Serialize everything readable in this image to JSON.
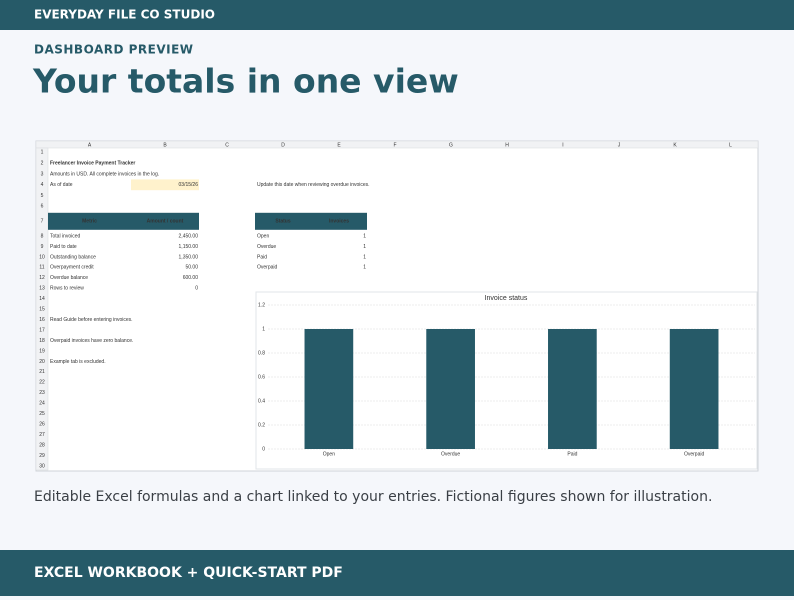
{
  "header": {
    "brand": "EVERYDAY FILE CO STUDIO"
  },
  "hero": {
    "kicker": "DASHBOARD PREVIEW",
    "title": "Your totals in one view"
  },
  "sheet": {
    "columns": [
      "A",
      "B",
      "C",
      "D",
      "E",
      "F",
      "G",
      "H",
      "I",
      "J",
      "K",
      "L"
    ],
    "rows": [
      {
        "number": 1
      },
      {
        "number": 2,
        "cells": {
          "A": "Freelancer Invoice Payment Tracker"
        }
      },
      {
        "number": 3,
        "cells": {
          "A": "Amounts in USD. All complete invoices in the log."
        }
      },
      {
        "number": 4,
        "cells": {
          "A": "As of date",
          "B": "03/15/26",
          "D": "Update this date when reviewing overdue invoices."
        }
      },
      {
        "number": 5
      },
      {
        "number": 6
      },
      {
        "number": 7,
        "cells": {
          "A": "Metric",
          "B": "Amount / count",
          "D": "Status",
          "E": "Invoices"
        }
      },
      {
        "number": 8,
        "cells": {
          "A": "Total invoiced",
          "B": "2,450.00",
          "D": "Open",
          "E": "1"
        }
      },
      {
        "number": 9,
        "cells": {
          "A": "Paid to date",
          "B": "1,150.00",
          "D": "Overdue",
          "E": "1"
        }
      },
      {
        "number": 10,
        "cells": {
          "A": "Outstanding balance",
          "B": "1,350.00",
          "D": "Paid",
          "E": "1"
        }
      },
      {
        "number": 11,
        "cells": {
          "A": "Overpayment credit",
          "B": "50.00",
          "D": "Overpaid",
          "E": "1"
        }
      },
      {
        "number": 12,
        "cells": {
          "A": "Overdue balance",
          "B": "600.00"
        }
      },
      {
        "number": 13,
        "cells": {
          "A": "Rows to review",
          "B": "0"
        }
      },
      {
        "number": 14
      },
      {
        "number": 15
      },
      {
        "number": 16,
        "cells": {
          "A": "Read Guide before entering invoices."
        }
      },
      {
        "number": 17
      },
      {
        "number": 18,
        "cells": {
          "A": "Overpaid invoices have zero balance."
        }
      },
      {
        "number": 19
      },
      {
        "number": 20,
        "cells": {
          "A": "Example tab is excluded."
        }
      },
      {
        "number": 21
      },
      {
        "number": 22
      },
      {
        "number": 23
      },
      {
        "number": 24
      },
      {
        "number": 25
      },
      {
        "number": 26
      },
      {
        "number": 27
      },
      {
        "number": 28
      },
      {
        "number": 29
      },
      {
        "number": 30
      }
    ]
  },
  "chart_data": {
    "type": "bar",
    "title": "Invoice status",
    "categories": [
      "Open",
      "Overdue",
      "Paid",
      "Overpaid"
    ],
    "values": [
      1,
      1,
      1,
      1
    ],
    "color": "#265a68",
    "ylim": [
      0,
      1.2
    ],
    "yticks": [
      0,
      0.2,
      0.4,
      0.6,
      0.8,
      1,
      1.2
    ],
    "grid": true
  },
  "caption": "Editable Excel formulas and a chart linked to your entries. Fictional figures shown for illustration.",
  "footer": {
    "label": "EXCEL WORKBOOK + QUICK-START PDF"
  }
}
